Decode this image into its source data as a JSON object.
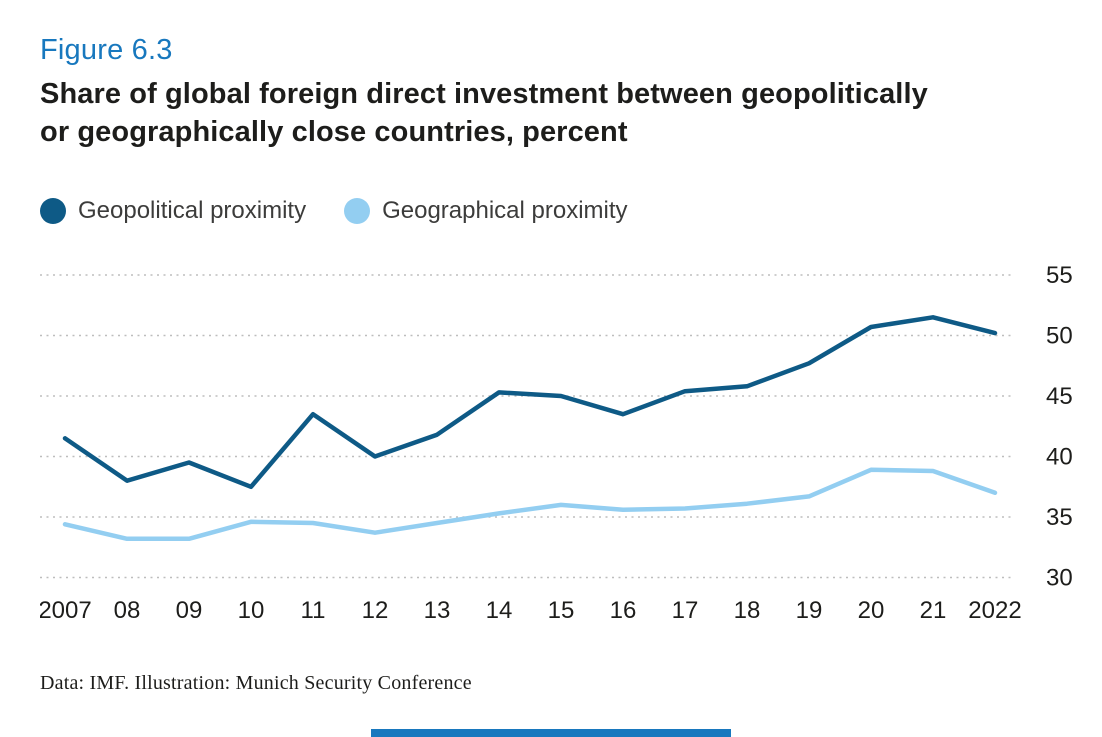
{
  "figure": {
    "label": "Figure 6.3",
    "title": "Share of global foreign direct investment between geopolitically\nor geographically close countries, percent",
    "source_note": "Data: IMF. Illustration: Munich Security Conference"
  },
  "colors": {
    "accent_blue": "#1878be",
    "geopolitical_line": "#0e5a86",
    "geographical_line": "#93cef1",
    "grid_line": "#bdbdbd",
    "axis_text": "#1d1d1b",
    "bottom_bar": "#1878be"
  },
  "legend": {
    "items": [
      {
        "label": "Geopolitical proximity",
        "color": "#0e5a86"
      },
      {
        "label": "Geographical proximity",
        "color": "#93cef1"
      }
    ]
  },
  "chart_data": {
    "type": "line",
    "title": "Share of global foreign direct investment between geopolitically or geographically close countries, percent",
    "x": [
      "2007",
      "08",
      "09",
      "10",
      "11",
      "12",
      "13",
      "14",
      "15",
      "16",
      "17",
      "18",
      "19",
      "20",
      "21",
      "2022"
    ],
    "series": [
      {
        "name": "Geopolitical proximity",
        "color": "#0e5a86",
        "values": [
          41.5,
          38.0,
          39.5,
          37.5,
          43.5,
          40.0,
          41.8,
          45.3,
          45.0,
          43.5,
          45.4,
          45.8,
          47.7,
          50.7,
          51.5,
          50.2
        ]
      },
      {
        "name": "Geographical proximity",
        "color": "#93cef1",
        "values": [
          34.4,
          33.2,
          33.2,
          34.6,
          34.5,
          33.7,
          34.5,
          35.3,
          36.0,
          35.6,
          35.7,
          36.1,
          36.7,
          38.9,
          38.8,
          37.0
        ]
      }
    ],
    "ylim": [
      30,
      55
    ],
    "yticks": [
      30,
      35,
      40,
      45,
      50,
      55
    ],
    "ytick_side": "right",
    "grid": "horizontal-dotted",
    "legend_position": "top-left"
  }
}
